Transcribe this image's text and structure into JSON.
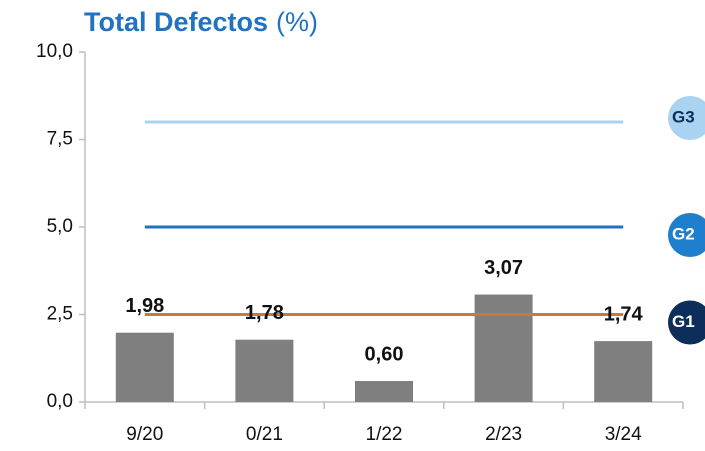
{
  "chart_data": {
    "type": "bar",
    "title": "Total Defectos",
    "title_unit": "(%)",
    "categories": [
      "9/20",
      "0/21",
      "1/22",
      "2/23",
      "3/24"
    ],
    "values": [
      1.98,
      1.78,
      0.6,
      3.07,
      1.74
    ],
    "value_labels": [
      "1,98",
      "1,78",
      "0,60",
      "3,07",
      "1,74"
    ],
    "color": "#7f7f7f",
    "ylim": [
      0,
      10
    ],
    "yticks": [
      {
        "value": 0,
        "label": "0,0"
      },
      {
        "value": 2.5,
        "label": "2,5"
      },
      {
        "value": 5,
        "label": "5,0"
      },
      {
        "value": 7.5,
        "label": "7,5"
      },
      {
        "value": 10,
        "label": "10,0"
      }
    ],
    "reference_lines": [
      {
        "name": "G3",
        "value": 8,
        "color": "#a9d3f0",
        "badge_color": "#a9d3f0",
        "badge_text_color": "#0d2e5a"
      },
      {
        "name": "G2",
        "value": 5,
        "color": "#1f73c0",
        "badge_color": "#1f7fcc",
        "badge_text_color": "#ffffff"
      },
      {
        "name": "G1",
        "value": 2.5,
        "color": "#c87a3e",
        "badge_color": "#0d2e5a",
        "badge_text_color": "#ffffff"
      }
    ]
  }
}
